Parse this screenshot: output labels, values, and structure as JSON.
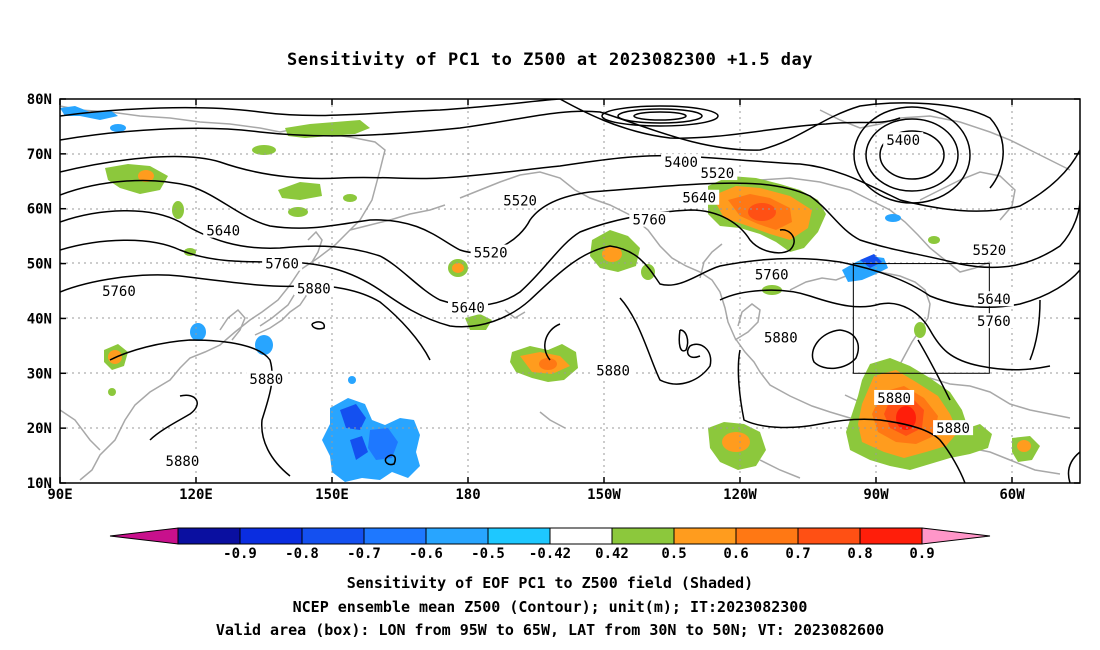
{
  "title": "Sensitivity of PC1 to Z500 at 2023082300 +1.5 day",
  "map": {
    "lat_labels": [
      "80N",
      "70N",
      "60N",
      "50N",
      "40N",
      "30N",
      "20N",
      "10N"
    ],
    "lon_labels": [
      "90E",
      "120E",
      "150E",
      "180",
      "150W",
      "120W",
      "90W",
      "60W"
    ],
    "contour_labels": [
      {
        "text": "5400",
        "lon": -133,
        "lat": 68.5
      },
      {
        "text": "5400",
        "lon": -84,
        "lat": 72.5
      },
      {
        "text": "5520",
        "lon": -125,
        "lat": 66.5
      },
      {
        "text": "5520",
        "lon": -168.5,
        "lat": 61.5
      },
      {
        "text": "5520",
        "lon": 185,
        "lat": 52
      },
      {
        "text": "5520",
        "lon": -65,
        "lat": 52.5
      },
      {
        "text": "5640",
        "lon": 126,
        "lat": 56
      },
      {
        "text": "5640",
        "lon": -129,
        "lat": 62
      },
      {
        "text": "5640",
        "lon": 180,
        "lat": 42
      },
      {
        "text": "5640",
        "lon": -64,
        "lat": 43.5
      },
      {
        "text": "5760",
        "lon": 103,
        "lat": 45
      },
      {
        "text": "5760",
        "lon": 139,
        "lat": 50
      },
      {
        "text": "5760",
        "lon": -140,
        "lat": 58
      },
      {
        "text": "5760",
        "lon": -113,
        "lat": 48
      },
      {
        "text": "5760",
        "lon": -64,
        "lat": 39.5
      },
      {
        "text": "5880",
        "lon": 146,
        "lat": 45.5
      },
      {
        "text": "5880",
        "lon": -111,
        "lat": 36.5
      },
      {
        "text": "5880",
        "lon": -148,
        "lat": 30.5
      },
      {
        "text": "5880",
        "lon": 135.5,
        "lat": 29
      },
      {
        "text": "5880",
        "lon": 117,
        "lat": 14
      },
      {
        "text": "5880",
        "lon": -86,
        "lat": 25.5
      },
      {
        "text": "5880",
        "lon": -73,
        "lat": 20
      }
    ],
    "valid_box": {
      "lon_min": -95,
      "lon_max": -65,
      "lat_min": 30,
      "lat_max": 50
    },
    "shading_palette": {
      "neg_strong": "#0a1cd0",
      "neg": "#1e6cff",
      "neg_weak": "#15b4ff",
      "pos_weak": "#8cc83c",
      "pos": "#ff9c1e",
      "pos_mid": "#ff6e14",
      "pos_strong": "#ff1e0a"
    }
  },
  "colorbar": {
    "labels": [
      "-0.9",
      "-0.8",
      "-0.7",
      "-0.6",
      "-0.5",
      "-0.42",
      "0.42",
      "0.5",
      "0.6",
      "0.7",
      "0.8",
      "0.9"
    ],
    "colors": [
      "#c8108c",
      "#0a0fa0",
      "#0a2de0",
      "#1450f0",
      "#1e78ff",
      "#28a5ff",
      "#1ec8ff",
      "#ffffff",
      "#8cc83c",
      "#ff9c1e",
      "#ff7814",
      "#ff5014",
      "#ff1e0a",
      "#ff96c8"
    ]
  },
  "captions": {
    "line1": "Sensitivity of EOF PC1 to Z500 field (Shaded)",
    "line2": "NCEP ensemble mean Z500 (Contour); unit(m); IT:2023082300",
    "line3": "Valid area (box): LON from 95W to 65W, LAT from 30N to 50N; VT: 2023082600"
  }
}
